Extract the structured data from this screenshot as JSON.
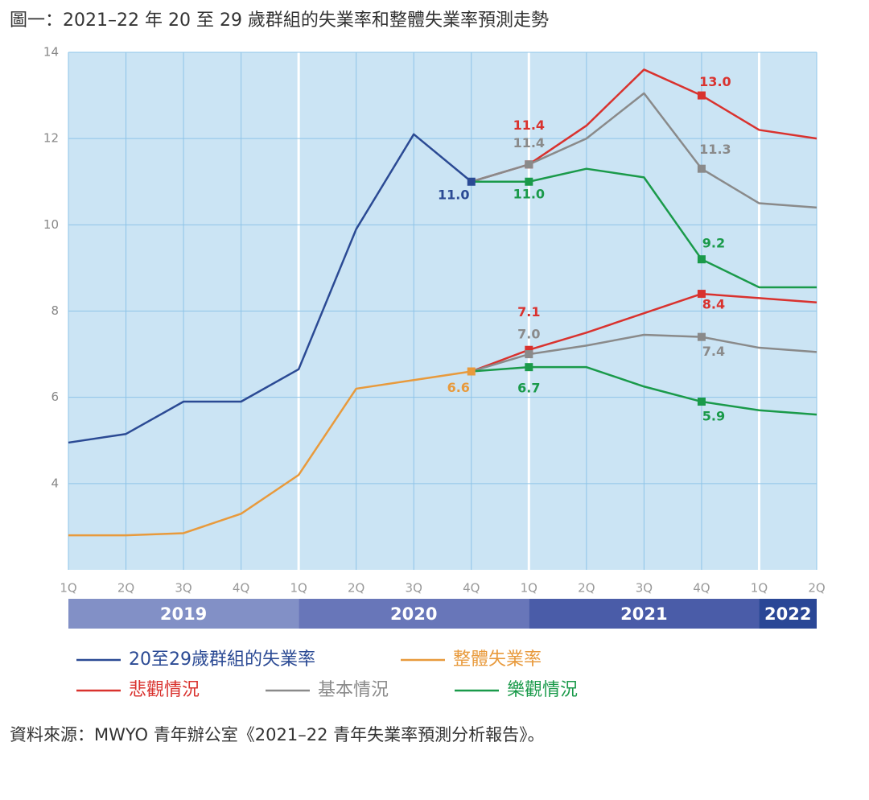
{
  "chart_data": {
    "type": "line",
    "title": "圖一：2021–22 年 20 至 29 歲群組的失業率和整體失業率預測走勢",
    "source": "資料來源：MWYO 青年辦公室《2021–22 青年失業率預測分析報告》。",
    "x_groups": [
      {
        "label": "2019",
        "color": "#8290c6",
        "categories": [
          "1Q",
          "2Q",
          "3Q",
          "4Q"
        ]
      },
      {
        "label": "2020",
        "color": "#6876b9",
        "categories": [
          "1Q",
          "2Q",
          "3Q",
          "4Q"
        ]
      },
      {
        "label": "2021",
        "color": "#4a5ca8",
        "categories": [
          "1Q",
          "2Q",
          "3Q",
          "4Q"
        ]
      },
      {
        "label": "2022",
        "color": "#2a4796",
        "categories": [
          "1Q",
          "2Q"
        ]
      }
    ],
    "ylim": [
      2,
      14
    ],
    "yticks": [
      4,
      6,
      8,
      10,
      12,
      14
    ],
    "grid": true,
    "series": [
      {
        "name": "20至29歲群組的失業率",
        "color": "#2b4a94",
        "lines": [
          [
            4.95,
            5.15,
            5.9,
            5.9,
            6.65,
            9.9,
            12.1,
            11.0,
            null,
            null,
            null,
            null,
            null,
            null
          ]
        ],
        "value_labels": [
          [
            null,
            null,
            null,
            null,
            null,
            null,
            null,
            "11.0",
            null,
            null,
            null,
            null,
            null,
            null
          ]
        ]
      },
      {
        "name": "整體失業率",
        "color": "#e89a3c",
        "lines": [
          [
            2.8,
            2.8,
            2.85,
            3.3,
            4.2,
            6.2,
            6.4,
            6.6,
            null,
            null,
            null,
            null,
            null,
            null
          ]
        ],
        "value_labels": [
          [
            null,
            null,
            null,
            null,
            null,
            null,
            null,
            "6.6",
            null,
            null,
            null,
            null,
            null,
            null
          ]
        ]
      },
      {
        "name": "悲觀情況",
        "color": "#d9322e",
        "lines": [
          [
            null,
            null,
            null,
            null,
            null,
            null,
            null,
            11.0,
            11.4,
            12.3,
            13.6,
            13.0,
            12.2,
            12.0
          ],
          [
            null,
            null,
            null,
            null,
            null,
            null,
            null,
            6.6,
            7.1,
            7.5,
            7.95,
            8.4,
            8.3,
            8.2
          ]
        ],
        "value_labels": [
          [
            null,
            null,
            null,
            null,
            null,
            null,
            null,
            null,
            "11.4",
            null,
            null,
            "13.0",
            null,
            null
          ],
          [
            null,
            null,
            null,
            null,
            null,
            null,
            null,
            null,
            "7.1",
            null,
            null,
            "8.4",
            null,
            null
          ]
        ]
      },
      {
        "name": "基本情況",
        "color": "#8a8a8a",
        "lines": [
          [
            null,
            null,
            null,
            null,
            null,
            null,
            null,
            11.0,
            11.4,
            12.0,
            13.05,
            11.3,
            10.5,
            10.4
          ],
          [
            null,
            null,
            null,
            null,
            null,
            null,
            null,
            6.6,
            7.0,
            7.2,
            7.45,
            7.4,
            7.15,
            7.05
          ]
        ],
        "value_labels": [
          [
            null,
            null,
            null,
            null,
            null,
            null,
            null,
            null,
            "11.4",
            null,
            null,
            "11.3",
            null,
            null
          ],
          [
            null,
            null,
            null,
            null,
            null,
            null,
            null,
            null,
            "7.0",
            null,
            null,
            "7.4",
            null,
            null
          ]
        ]
      },
      {
        "name": "樂觀情況",
        "color": "#1a9a4a",
        "lines": [
          [
            null,
            null,
            null,
            null,
            null,
            null,
            null,
            11.0,
            11.0,
            11.3,
            11.1,
            9.2,
            8.55,
            8.55
          ],
          [
            null,
            null,
            null,
            null,
            null,
            null,
            null,
            6.6,
            6.7,
            6.7,
            6.25,
            5.9,
            5.7,
            5.6
          ]
        ],
        "value_labels": [
          [
            null,
            null,
            null,
            null,
            null,
            null,
            null,
            null,
            "11.0",
            null,
            null,
            "9.2",
            null,
            null
          ],
          [
            null,
            null,
            null,
            null,
            null,
            null,
            null,
            null,
            "6.7",
            null,
            null,
            "5.9",
            null,
            null
          ]
        ]
      }
    ]
  }
}
